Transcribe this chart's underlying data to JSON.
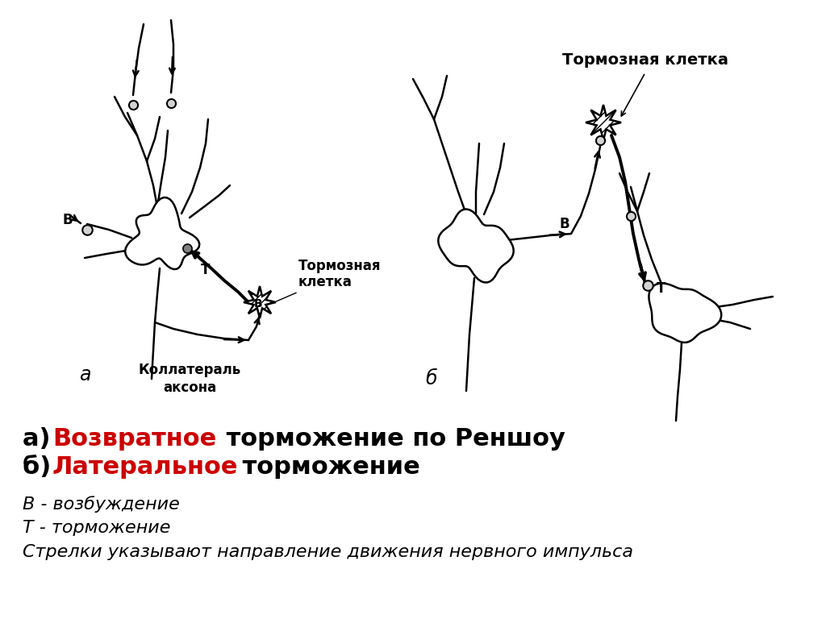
{
  "bg_color": "#ffffff",
  "text_color": "#000000",
  "red_color": "#cc0000",
  "line_color": "#000000",
  "label_a": "а",
  "label_b": "б",
  "title_a_line1": "Тормозная",
  "title_a_line2": "клетка",
  "title_b": "Тормозная клетка",
  "label_kollateral_line1": "Коллатераль",
  "label_kollateral_line2": "аксона",
  "caption_a_prefix": "а) ",
  "caption_a_red": "Возвратное",
  "caption_a_rest": " торможение по Реншоу",
  "caption_b_prefix": "б) ",
  "caption_b_red": "Латеральное",
  "caption_b_rest": " торможение",
  "legend1": "В - возбуждение",
  "legend2": "Т - торможение",
  "legend3": "Стрелки указывают направление движения нервного импульса"
}
